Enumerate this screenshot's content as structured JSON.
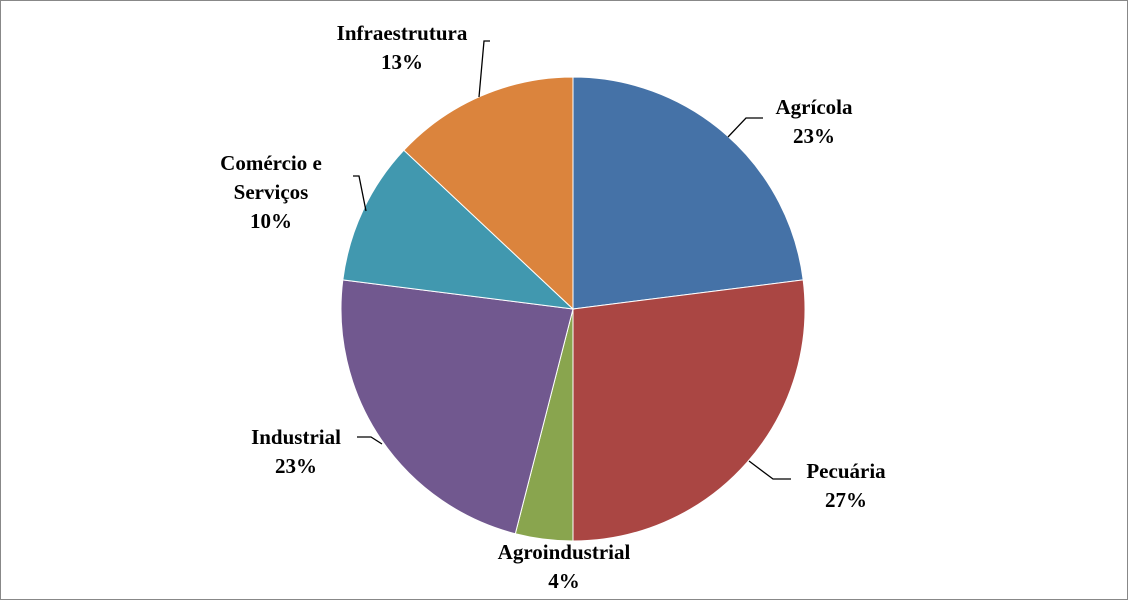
{
  "chart_data": {
    "type": "pie",
    "categories": [
      "Agrícola",
      "Pecuária",
      "Agroindustrial",
      "Industrial",
      "Comércio e Serviços",
      "Infraestrutura"
    ],
    "values": [
      23,
      27,
      4,
      23,
      10,
      13
    ],
    "value_labels": [
      "23%",
      "27%",
      "4%",
      "23%",
      "10%",
      "13%"
    ],
    "colors": [
      "#4572a7",
      "#aa4643",
      "#89a54e",
      "#71588f",
      "#4198af",
      "#db843d"
    ]
  }
}
